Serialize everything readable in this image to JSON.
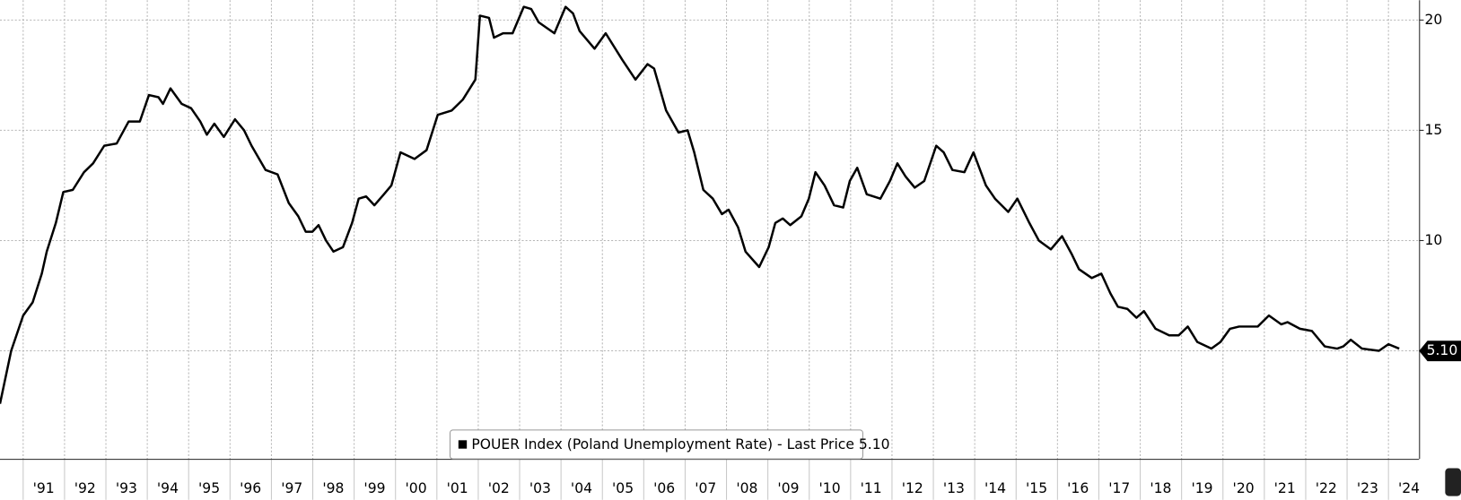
{
  "chart_data": {
    "type": "line",
    "xlim": [
      1990.44,
      2024.74
    ],
    "ylim": [
      0.1,
      20.9
    ],
    "yticks": [
      5,
      10,
      15,
      20
    ],
    "xticks": [
      {
        "value": 1991,
        "label": "'91"
      },
      {
        "value": 1992,
        "label": "'92"
      },
      {
        "value": 1993,
        "label": "'93"
      },
      {
        "value": 1994,
        "label": "'94"
      },
      {
        "value": 1995,
        "label": "'95"
      },
      {
        "value": 1996,
        "label": "'96"
      },
      {
        "value": 1997,
        "label": "'97"
      },
      {
        "value": 1998,
        "label": "'98"
      },
      {
        "value": 1999,
        "label": "'99"
      },
      {
        "value": 2000,
        "label": "'00"
      },
      {
        "value": 2001,
        "label": "'01"
      },
      {
        "value": 2002,
        "label": "'02"
      },
      {
        "value": 2003,
        "label": "'03"
      },
      {
        "value": 2004,
        "label": "'04"
      },
      {
        "value": 2005,
        "label": "'05"
      },
      {
        "value": 2006,
        "label": "'06"
      },
      {
        "value": 2007,
        "label": "'07"
      },
      {
        "value": 2008,
        "label": "'08"
      },
      {
        "value": 2009,
        "label": "'09"
      },
      {
        "value": 2010,
        "label": "'10"
      },
      {
        "value": 2011,
        "label": "'11"
      },
      {
        "value": 2012,
        "label": "'12"
      },
      {
        "value": 2013,
        "label": "'13"
      },
      {
        "value": 2014,
        "label": "'14"
      },
      {
        "value": 2015,
        "label": "'15"
      },
      {
        "value": 2016,
        "label": "'16"
      },
      {
        "value": 2017,
        "label": "'17"
      },
      {
        "value": 2018,
        "label": "'18"
      },
      {
        "value": 2019,
        "label": "'19"
      },
      {
        "value": 2020,
        "label": "'20"
      },
      {
        "value": 2021,
        "label": "'21"
      },
      {
        "value": 2022,
        "label": "'22"
      },
      {
        "value": 2023,
        "label": "'23"
      },
      {
        "value": 2024,
        "label": "'24"
      }
    ],
    "grid": true,
    "legend": "bottom",
    "last_value_label": "5.10",
    "x": [
      1990.44,
      1990.71,
      1991.0,
      1991.23,
      1991.45,
      1991.57,
      1991.79,
      1991.97,
      1992.2,
      1992.47,
      1992.69,
      1992.96,
      1993.26,
      1993.55,
      1993.82,
      1994.04,
      1994.27,
      1994.38,
      1994.56,
      1994.83,
      1995.06,
      1995.28,
      1995.44,
      1995.62,
      1995.85,
      1996.12,
      1996.34,
      1996.52,
      1996.86,
      1997.15,
      1997.42,
      1997.65,
      1997.83,
      1997.99,
      1998.14,
      1998.32,
      1998.5,
      1998.73,
      1998.95,
      1999.11,
      1999.29,
      1999.49,
      1999.72,
      1999.9,
      2000.12,
      2000.46,
      2000.75,
      2001.02,
      2001.36,
      2001.63,
      2001.93,
      2002.04,
      2002.26,
      2002.38,
      2002.6,
      2002.83,
      2003.1,
      2003.28,
      2003.46,
      2003.84,
      2004.11,
      2004.29,
      2004.45,
      2004.81,
      2005.08,
      2005.48,
      2005.8,
      2006.09,
      2006.25,
      2006.54,
      2006.84,
      2007.06,
      2007.22,
      2007.44,
      2007.67,
      2007.89,
      2008.05,
      2008.28,
      2008.46,
      2008.79,
      2009.02,
      2009.18,
      2009.36,
      2009.54,
      2009.81,
      2009.99,
      2010.15,
      2010.37,
      2010.6,
      2010.82,
      2010.98,
      2011.16,
      2011.39,
      2011.72,
      2011.95,
      2012.13,
      2012.33,
      2012.55,
      2012.78,
      2013.07,
      2013.25,
      2013.46,
      2013.75,
      2013.97,
      2014.27,
      2014.49,
      2014.81,
      2015.03,
      2015.32,
      2015.55,
      2015.84,
      2016.11,
      2016.34,
      2016.52,
      2016.83,
      2017.06,
      2017.28,
      2017.46,
      2017.69,
      2017.91,
      2018.09,
      2018.37,
      2018.7,
      2018.93,
      2019.15,
      2019.38,
      2019.72,
      2019.94,
      2020.17,
      2020.39,
      2020.84,
      2021.11,
      2021.41,
      2021.56,
      2021.86,
      2022.15,
      2022.46,
      2022.76,
      2022.91,
      2023.09,
      2023.36,
      2023.77,
      2024.0,
      2024.26
    ],
    "series": [
      {
        "name": "POUER Index (Poland Unemployment Rate) - Last Price 5.10",
        "color": "#000000",
        "values": [
          2.6,
          5.0,
          6.6,
          7.2,
          8.5,
          9.5,
          10.8,
          12.2,
          12.3,
          13.1,
          13.5,
          14.3,
          14.4,
          15.4,
          15.4,
          16.6,
          16.5,
          16.2,
          16.9,
          16.2,
          16.0,
          15.4,
          14.8,
          15.3,
          14.7,
          15.5,
          15.0,
          14.3,
          13.2,
          13.0,
          11.7,
          11.1,
          10.4,
          10.4,
          10.7,
          10.0,
          9.5,
          9.7,
          10.8,
          11.9,
          12.0,
          11.6,
          12.1,
          12.5,
          14.0,
          13.7,
          14.1,
          15.7,
          15.9,
          16.4,
          17.3,
          20.2,
          20.1,
          19.2,
          19.4,
          19.4,
          20.6,
          20.5,
          19.9,
          19.4,
          20.6,
          20.3,
          19.5,
          18.7,
          19.4,
          18.2,
          17.3,
          18.0,
          17.8,
          15.9,
          14.9,
          15.0,
          14.0,
          12.3,
          11.9,
          11.2,
          11.4,
          10.6,
          9.5,
          8.8,
          9.7,
          10.8,
          11.0,
          10.7,
          11.1,
          11.9,
          13.1,
          12.5,
          11.6,
          11.5,
          12.7,
          13.3,
          12.1,
          11.9,
          12.7,
          13.5,
          12.9,
          12.4,
          12.7,
          14.3,
          14.0,
          13.2,
          13.1,
          14.0,
          12.5,
          11.9,
          11.3,
          11.9,
          10.8,
          10.0,
          9.6,
          10.2,
          9.4,
          8.7,
          8.3,
          8.5,
          7.6,
          7.0,
          6.9,
          6.5,
          6.8,
          6.0,
          5.7,
          5.7,
          6.1,
          5.4,
          5.1,
          5.4,
          6.0,
          6.1,
          6.1,
          6.6,
          6.2,
          6.3,
          6.0,
          5.9,
          5.2,
          5.1,
          5.2,
          5.5,
          5.1,
          5.0,
          5.3,
          5.1
        ]
      }
    ]
  }
}
